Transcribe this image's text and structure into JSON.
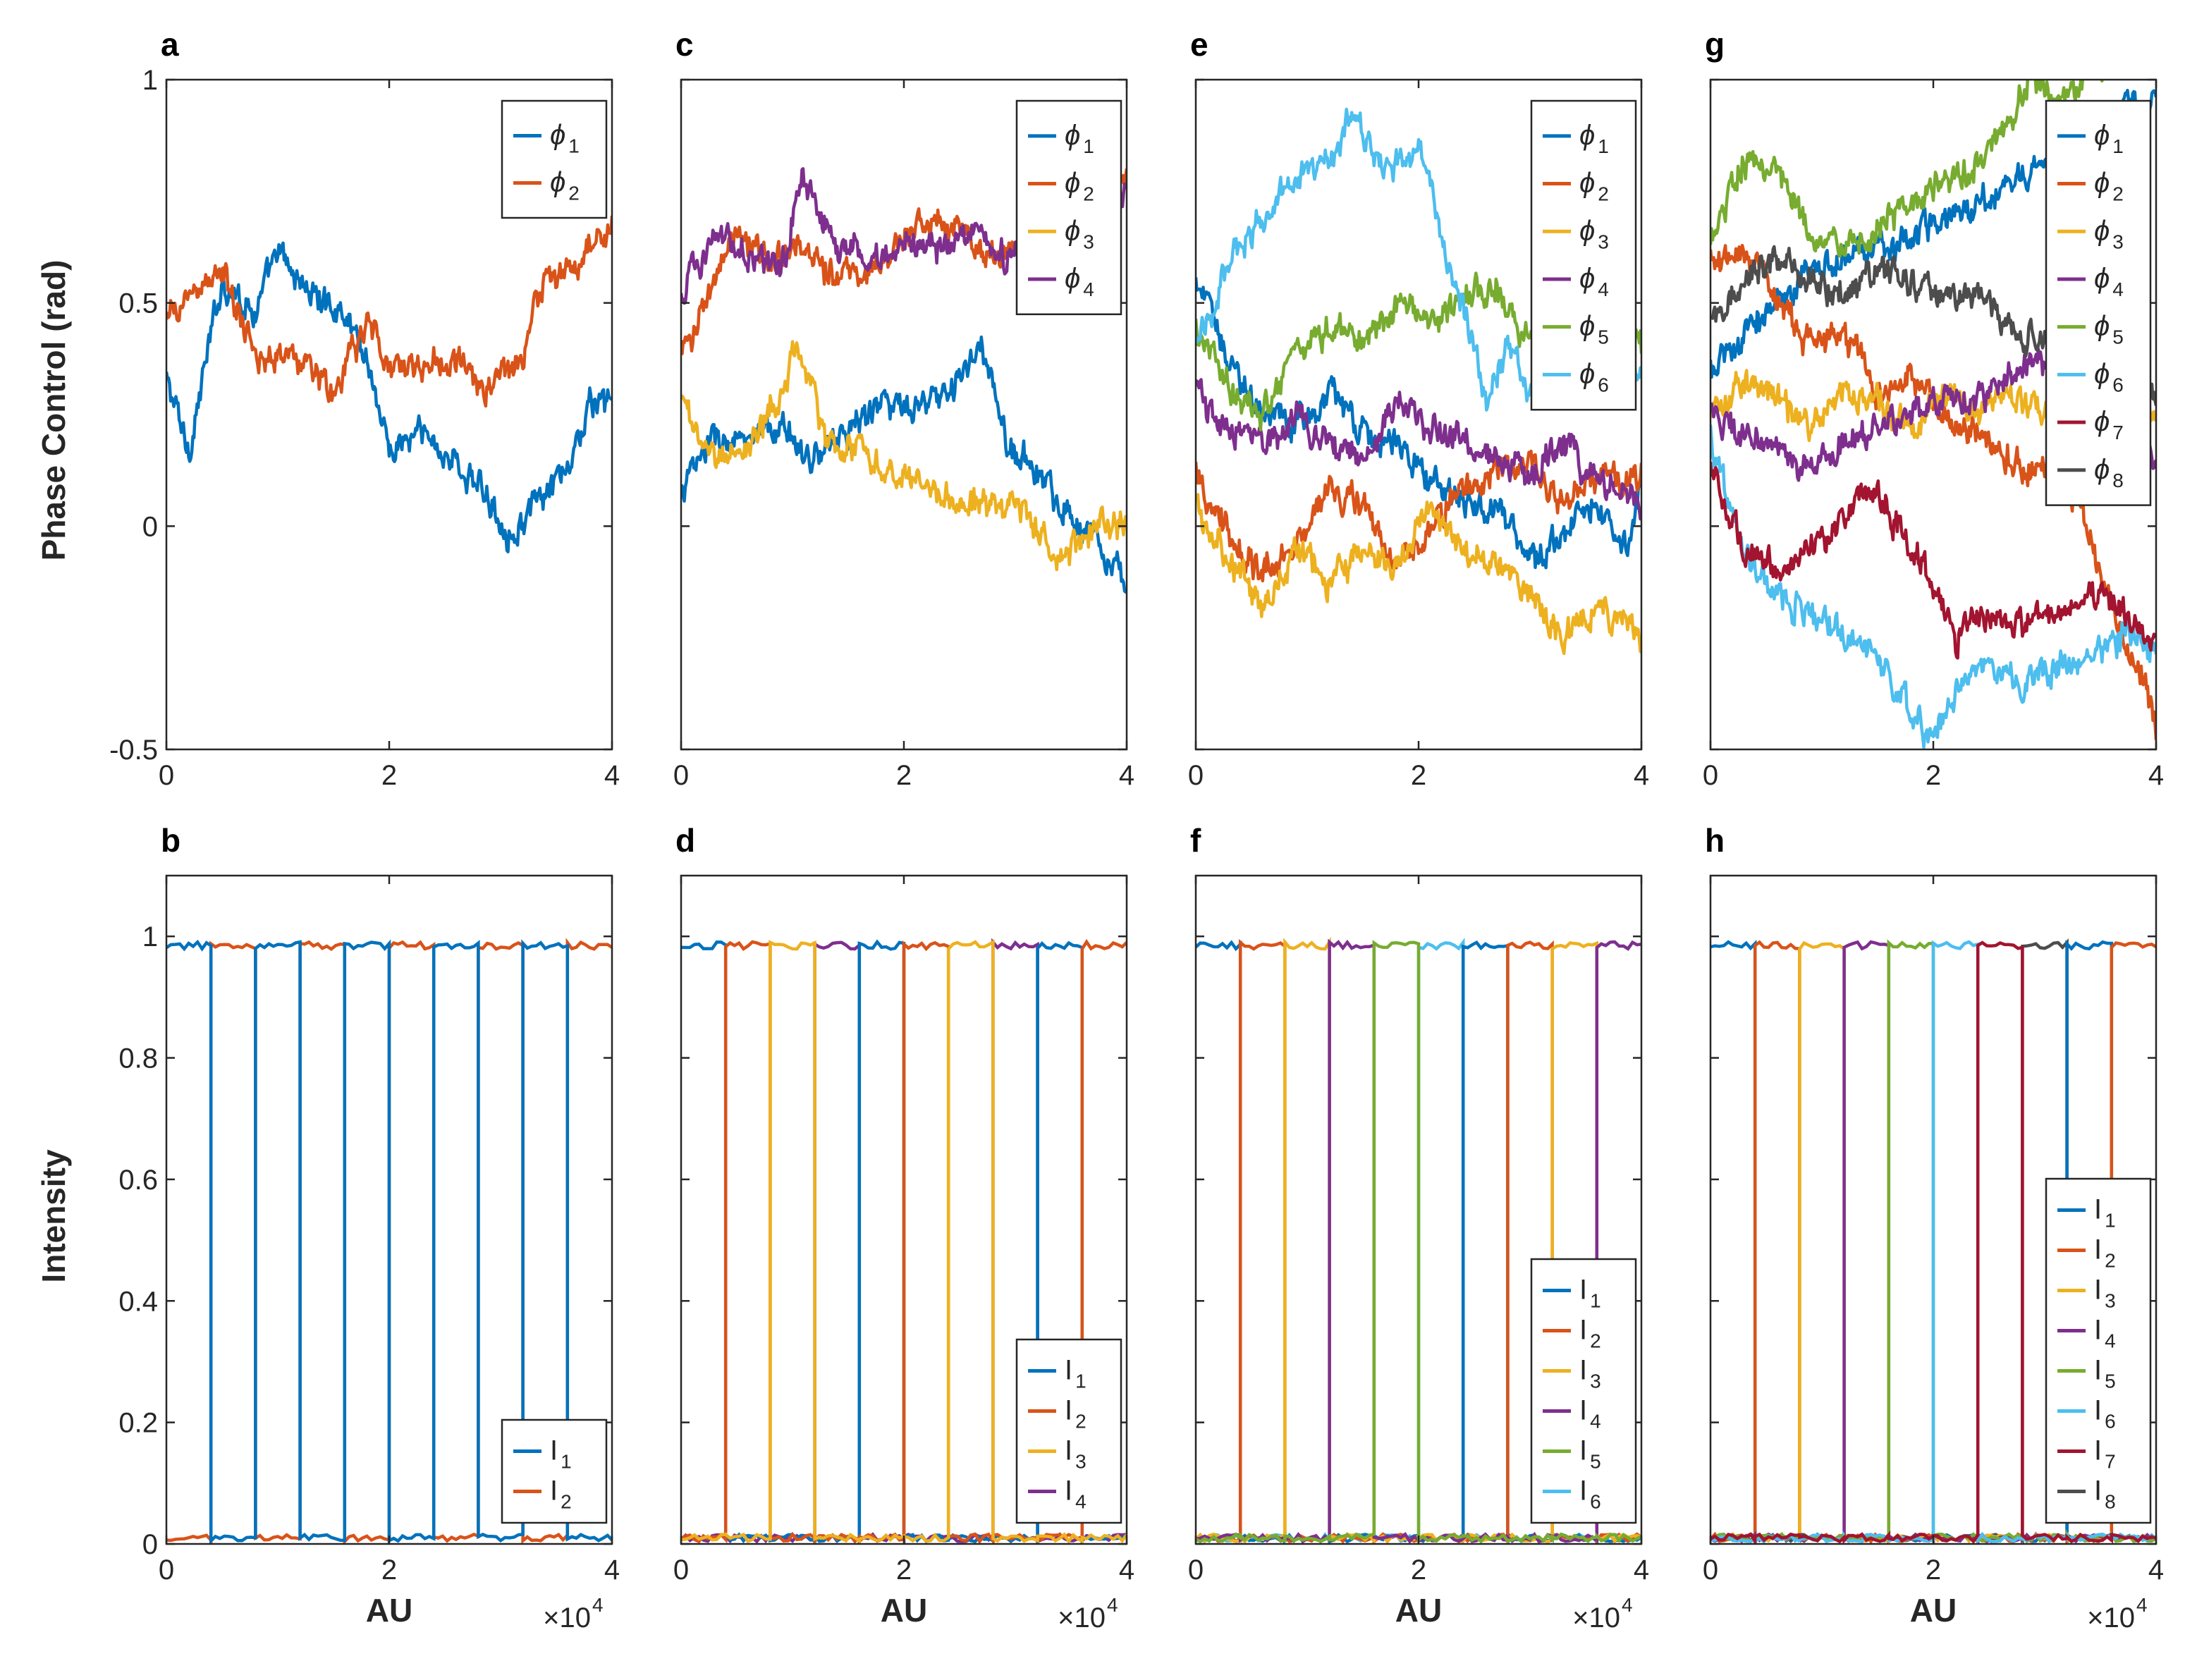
{
  "colors": {
    "c1": "#0072BD",
    "c2": "#D95319",
    "c3": "#EDB120",
    "c4": "#7E2F8E",
    "c5": "#77AC30",
    "c6": "#4DBEEE",
    "c7": "#A2142F",
    "c8": "#4D4D4D"
  },
  "shared": {
    "phase_ylabel": "Phase Control (rad)",
    "intensity_ylabel": "Intensity",
    "xlabel": "AU",
    "exponent_base": "×10",
    "exponent_power": "4"
  },
  "chart_data": [
    {
      "panel": "a",
      "type": "line",
      "row": "phase",
      "col": 0,
      "xlim": [
        0,
        4
      ],
      "ylim": [
        -0.5,
        1
      ],
      "xticks": [
        "0",
        "2",
        "4"
      ],
      "yticks": [
        "-0.5",
        "0",
        "0.5",
        "1"
      ],
      "legend": "top-right",
      "series": [
        {
          "name": "ϕ",
          "sub": "1",
          "color": "c1",
          "x": [
            0,
            0.2,
            0.5,
            0.8,
            1.0,
            1.3,
            1.6,
            1.8,
            2.0,
            2.3,
            2.6,
            2.9,
            3.1,
            3.3,
            3.6,
            3.8,
            4.0
          ],
          "y": [
            0.33,
            0.17,
            0.55,
            0.48,
            0.61,
            0.52,
            0.48,
            0.38,
            0.17,
            0.21,
            0.14,
            0.06,
            -0.02,
            0.04,
            0.12,
            0.27,
            0.28
          ]
        },
        {
          "name": "ϕ",
          "sub": "2",
          "color": "c2",
          "x": [
            0,
            0.2,
            0.5,
            0.8,
            1.0,
            1.3,
            1.5,
            1.7,
            1.8,
            2.0,
            2.3,
            2.6,
            2.8,
            3.0,
            3.2,
            3.3,
            3.6,
            3.8,
            4.0
          ],
          "y": [
            0.45,
            0.52,
            0.57,
            0.37,
            0.39,
            0.36,
            0.29,
            0.4,
            0.46,
            0.36,
            0.36,
            0.38,
            0.3,
            0.34,
            0.37,
            0.52,
            0.57,
            0.62,
            0.68
          ]
        }
      ]
    },
    {
      "panel": "b",
      "type": "line",
      "row": "intensity",
      "col": 0,
      "xlim": [
        0,
        4
      ],
      "ylim": [
        0,
        1.1
      ],
      "xticks": [
        "0",
        "2",
        "4"
      ],
      "yticks": [
        "0",
        "0.2",
        "0.4",
        "0.6",
        "0.8",
        "1"
      ],
      "legend": "bottom-right",
      "n_channels": 2,
      "segment_width": 0.4,
      "high": 0.985,
      "low": 0.01,
      "series": [
        {
          "name": "I",
          "sub": "1",
          "color": "c1"
        },
        {
          "name": "I",
          "sub": "2",
          "color": "c2"
        }
      ]
    },
    {
      "panel": "c",
      "type": "line",
      "row": "phase",
      "col": 1,
      "xlim": [
        0,
        4
      ],
      "ylim": [
        -0.5,
        1
      ],
      "xticks": [
        "0",
        "2",
        "4"
      ],
      "yticks": [
        "-0.5",
        "0",
        "0.5",
        "1"
      ],
      "legend": "top-right",
      "series": [
        {
          "name": "ϕ",
          "sub": "1",
          "color": "c1",
          "x": [
            0,
            0.3,
            0.6,
            0.9,
            1.2,
            1.5,
            1.8,
            2.1,
            2.4,
            2.7,
            2.9,
            3.1,
            3.4,
            3.7,
            4.0
          ],
          "y": [
            0.08,
            0.2,
            0.18,
            0.22,
            0.15,
            0.22,
            0.28,
            0.25,
            0.3,
            0.4,
            0.2,
            0.15,
            0.05,
            -0.02,
            -0.12
          ]
        },
        {
          "name": "ϕ",
          "sub": "2",
          "color": "c2",
          "x": [
            0,
            0.3,
            0.5,
            0.8,
            1.0,
            1.3,
            1.6,
            1.9,
            2.2,
            2.5,
            2.8,
            3.1,
            3.4,
            3.7,
            4.0
          ],
          "y": [
            0.38,
            0.55,
            0.65,
            0.6,
            0.62,
            0.58,
            0.55,
            0.62,
            0.7,
            0.68,
            0.6,
            0.62,
            0.65,
            0.74,
            0.77
          ]
        },
        {
          "name": "ϕ",
          "sub": "3",
          "color": "c3",
          "x": [
            0,
            0.3,
            0.6,
            0.9,
            1.05,
            1.3,
            1.6,
            1.9,
            2.2,
            2.5,
            2.8,
            3.1,
            3.4,
            3.7,
            4.0
          ],
          "y": [
            0.28,
            0.15,
            0.18,
            0.3,
            0.4,
            0.2,
            0.18,
            0.12,
            0.08,
            0.06,
            0.05,
            0.02,
            -0.08,
            0.0,
            0.0
          ]
        },
        {
          "name": "ϕ",
          "sub": "4",
          "color": "c4",
          "x": [
            0,
            0.3,
            0.6,
            0.9,
            1.1,
            1.4,
            1.7,
            2.0,
            2.3,
            2.6,
            2.9,
            3.2,
            3.5,
            3.8,
            4.0
          ],
          "y": [
            0.52,
            0.65,
            0.62,
            0.58,
            0.78,
            0.62,
            0.6,
            0.64,
            0.62,
            0.65,
            0.6,
            0.62,
            0.65,
            0.72,
            0.75
          ]
        }
      ]
    },
    {
      "panel": "d",
      "type": "line",
      "row": "intensity",
      "col": 1,
      "xlim": [
        0,
        4
      ],
      "ylim": [
        0,
        1.1
      ],
      "xticks": [
        "0",
        "2",
        "4"
      ],
      "yticks": [
        "0",
        "0.2",
        "0.4",
        "0.6",
        "0.8",
        "1"
      ],
      "legend": "bottom-right",
      "n_channels": 4,
      "segment_width": 0.4,
      "high": 0.985,
      "low": 0.01,
      "series": [
        {
          "name": "I",
          "sub": "1",
          "color": "c1"
        },
        {
          "name": "I",
          "sub": "2",
          "color": "c2"
        },
        {
          "name": "I",
          "sub": "3",
          "color": "c3"
        },
        {
          "name": "I",
          "sub": "4",
          "color": "c4"
        }
      ]
    },
    {
      "panel": "e",
      "type": "line",
      "row": "phase",
      "col": 2,
      "xlim": [
        0,
        4
      ],
      "ylim": [
        -0.5,
        1
      ],
      "xticks": [
        "0",
        "2",
        "4"
      ],
      "yticks": [
        "-0.5",
        "0",
        "0.5",
        "1"
      ],
      "legend": "top-right",
      "series": [
        {
          "name": "ϕ",
          "sub": "1",
          "color": "c1",
          "x": [
            0,
            0.3,
            0.6,
            0.9,
            1.2,
            1.5,
            1.8,
            2.1,
            2.4,
            2.7,
            3.0,
            3.3,
            3.6,
            3.9,
            4.0
          ],
          "y": [
            0.55,
            0.38,
            0.25,
            0.22,
            0.3,
            0.2,
            0.2,
            0.1,
            0.05,
            0.05,
            -0.08,
            -0.02,
            0.05,
            -0.05,
            0.1
          ]
        },
        {
          "name": "ϕ",
          "sub": "2",
          "color": "c2",
          "x": [
            0,
            0.3,
            0.6,
            0.9,
            1.2,
            1.5,
            1.8,
            2.1,
            2.4,
            2.7,
            3.0,
            3.3,
            3.6,
            3.9,
            4.0
          ],
          "y": [
            0.12,
            -0.02,
            -0.1,
            -0.05,
            0.08,
            0.05,
            -0.1,
            0.0,
            0.08,
            0.12,
            0.15,
            0.05,
            0.12,
            0.1,
            0.12
          ]
        },
        {
          "name": "ϕ",
          "sub": "3",
          "color": "c3",
          "x": [
            0,
            0.3,
            0.6,
            0.9,
            1.2,
            1.5,
            1.8,
            2.1,
            2.4,
            2.7,
            3.0,
            3.3,
            3.6,
            3.9,
            4.0
          ],
          "y": [
            0.05,
            -0.08,
            -0.18,
            -0.05,
            -0.12,
            -0.05,
            -0.1,
            0.05,
            -0.05,
            -0.08,
            -0.15,
            -0.25,
            -0.18,
            -0.22,
            -0.28
          ]
        },
        {
          "name": "ϕ",
          "sub": "4",
          "color": "c4",
          "x": [
            0,
            0.3,
            0.6,
            0.9,
            1.2,
            1.5,
            1.8,
            2.1,
            2.4,
            2.7,
            3.0,
            3.3,
            3.6,
            3.9,
            4.0
          ],
          "y": [
            0.3,
            0.22,
            0.18,
            0.25,
            0.18,
            0.15,
            0.28,
            0.22,
            0.2,
            0.15,
            0.12,
            0.18,
            0.1,
            0.08,
            0.02
          ]
        },
        {
          "name": "ϕ",
          "sub": "5",
          "color": "c5",
          "x": [
            0,
            0.3,
            0.6,
            0.9,
            1.2,
            1.5,
            1.8,
            2.1,
            2.4,
            2.7,
            2.9,
            3.1,
            3.4,
            3.7,
            4.0
          ],
          "y": [
            0.45,
            0.3,
            0.25,
            0.38,
            0.45,
            0.4,
            0.5,
            0.45,
            0.52,
            0.55,
            0.4,
            0.5,
            0.55,
            0.58,
            0.4
          ]
        },
        {
          "name": "ϕ",
          "sub": "6",
          "color": "c6",
          "x": [
            0,
            0.3,
            0.6,
            0.9,
            1.2,
            1.4,
            1.7,
            2.0,
            2.2,
            2.4,
            2.6,
            2.8,
            3.0,
            3.3,
            3.6,
            4.0
          ],
          "y": [
            0.4,
            0.58,
            0.7,
            0.78,
            0.82,
            0.92,
            0.8,
            0.85,
            0.65,
            0.5,
            0.28,
            0.4,
            0.3,
            0.42,
            0.45,
            0.35
          ]
        }
      ]
    },
    {
      "panel": "f",
      "type": "line",
      "row": "intensity",
      "col": 2,
      "xlim": [
        0,
        4
      ],
      "ylim": [
        0,
        1.1
      ],
      "xticks": [
        "0",
        "2",
        "4"
      ],
      "yticks": [
        "0",
        "0.2",
        "0.4",
        "0.6",
        "0.8",
        "1"
      ],
      "legend": "bottom-right",
      "n_channels": 6,
      "segment_width": 0.4,
      "high": 0.985,
      "low": 0.01,
      "series": [
        {
          "name": "I",
          "sub": "1",
          "color": "c1"
        },
        {
          "name": "I",
          "sub": "2",
          "color": "c2"
        },
        {
          "name": "I",
          "sub": "3",
          "color": "c3"
        },
        {
          "name": "I",
          "sub": "4",
          "color": "c4"
        },
        {
          "name": "I",
          "sub": "5",
          "color": "c5"
        },
        {
          "name": "I",
          "sub": "6",
          "color": "c6"
        }
      ]
    },
    {
      "panel": "g",
      "type": "line",
      "row": "phase",
      "col": 3,
      "xlim": [
        0,
        4
      ],
      "ylim": [
        -0.5,
        1
      ],
      "xticks": [
        "0",
        "2",
        "4"
      ],
      "yticks": [
        "-0.5",
        "0",
        "0.5",
        "1"
      ],
      "legend": "top-right",
      "series": [
        {
          "name": "ϕ",
          "sub": "1",
          "color": "c1",
          "x": [
            0,
            0.3,
            0.6,
            0.9,
            1.2,
            1.5,
            1.8,
            2.1,
            2.4,
            2.7,
            3.0,
            3.3,
            3.6,
            3.9,
            4.0
          ],
          "y": [
            0.35,
            0.42,
            0.5,
            0.58,
            0.6,
            0.62,
            0.65,
            0.68,
            0.72,
            0.78,
            0.82,
            0.88,
            0.92,
            0.95,
            0.95
          ]
        },
        {
          "name": "ϕ",
          "sub": "2",
          "color": "c2",
          "x": [
            0,
            0.3,
            0.6,
            0.9,
            1.2,
            1.5,
            1.8,
            2.1,
            2.4,
            2.7,
            3.0,
            3.3,
            3.5,
            3.7,
            3.9,
            4.0
          ],
          "y": [
            0.6,
            0.62,
            0.52,
            0.4,
            0.42,
            0.3,
            0.35,
            0.25,
            0.22,
            0.15,
            0.12,
            0.05,
            -0.1,
            -0.25,
            -0.35,
            -0.45
          ]
        },
        {
          "name": "ϕ",
          "sub": "3",
          "color": "c3",
          "x": [
            0,
            0.3,
            0.6,
            0.9,
            1.2,
            1.5,
            1.8,
            2.1,
            2.4,
            2.7,
            3.0,
            3.3,
            3.6,
            3.9,
            4.0
          ],
          "y": [
            0.25,
            0.32,
            0.28,
            0.22,
            0.3,
            0.28,
            0.22,
            0.3,
            0.25,
            0.3,
            0.25,
            0.2,
            0.28,
            0.25,
            0.25
          ]
        },
        {
          "name": "ϕ",
          "sub": "4",
          "color": "c4",
          "x": [
            0,
            0.3,
            0.6,
            0.9,
            1.2,
            1.5,
            1.8,
            2.1,
            2.4,
            2.7,
            3.0,
            3.3,
            3.6,
            3.9,
            4.0
          ],
          "y": [
            0.25,
            0.2,
            0.18,
            0.12,
            0.2,
            0.22,
            0.25,
            0.3,
            0.28,
            0.35,
            0.38,
            0.3,
            0.35,
            0.2,
            0.12
          ]
        },
        {
          "name": "ϕ",
          "sub": "5",
          "color": "c5",
          "x": [
            0,
            0.3,
            0.6,
            0.9,
            1.2,
            1.5,
            1.8,
            2.1,
            2.4,
            2.7,
            2.9,
            3.1,
            3.4,
            3.7,
            4.0
          ],
          "y": [
            0.62,
            0.82,
            0.8,
            0.65,
            0.62,
            0.68,
            0.72,
            0.78,
            0.8,
            0.92,
            1.02,
            0.95,
            1.0,
            1.05,
            1.05
          ]
        },
        {
          "name": "ϕ",
          "sub": "6",
          "color": "c6",
          "x": [
            0,
            0.3,
            0.6,
            0.9,
            1.2,
            1.5,
            1.8,
            2.0,
            2.2,
            2.5,
            2.8,
            3.1,
            3.4,
            3.7,
            4.0
          ],
          "y": [
            0.2,
            -0.05,
            -0.15,
            -0.2,
            -0.25,
            -0.3,
            -0.42,
            -0.48,
            -0.38,
            -0.3,
            -0.35,
            -0.32,
            -0.3,
            -0.25,
            -0.28
          ]
        },
        {
          "name": "ϕ",
          "sub": "7",
          "color": "c7",
          "x": [
            0,
            0.3,
            0.6,
            0.9,
            1.2,
            1.5,
            1.8,
            2.0,
            2.2,
            2.5,
            2.8,
            3.1,
            3.4,
            3.7,
            4.0
          ],
          "y": [
            0.12,
            -0.05,
            -0.1,
            -0.05,
            0.02,
            0.08,
            -0.05,
            -0.12,
            -0.25,
            -0.18,
            -0.22,
            -0.2,
            -0.15,
            -0.18,
            -0.25
          ]
        },
        {
          "name": "ϕ",
          "sub": "8",
          "color": "c8",
          "x": [
            0,
            0.3,
            0.6,
            0.9,
            1.2,
            1.5,
            1.8,
            2.1,
            2.4,
            2.7,
            3.0,
            3.3,
            3.6,
            3.9,
            4.0
          ],
          "y": [
            0.45,
            0.55,
            0.6,
            0.55,
            0.52,
            0.58,
            0.55,
            0.5,
            0.52,
            0.45,
            0.4,
            0.38,
            0.35,
            0.32,
            0.3
          ]
        }
      ]
    },
    {
      "panel": "h",
      "type": "line",
      "row": "intensity",
      "col": 3,
      "xlim": [
        0,
        4
      ],
      "ylim": [
        0,
        1.1
      ],
      "xticks": [
        "0",
        "2",
        "4"
      ],
      "yticks": [
        "0",
        "0.2",
        "0.4",
        "0.6",
        "0.8",
        "1"
      ],
      "legend": "bottom-right",
      "n_channels": 8,
      "segment_width": 0.4,
      "high": 0.985,
      "low": 0.01,
      "series": [
        {
          "name": "I",
          "sub": "1",
          "color": "c1"
        },
        {
          "name": "I",
          "sub": "2",
          "color": "c2"
        },
        {
          "name": "I",
          "sub": "3",
          "color": "c3"
        },
        {
          "name": "I",
          "sub": "4",
          "color": "c4"
        },
        {
          "name": "I",
          "sub": "5",
          "color": "c5"
        },
        {
          "name": "I",
          "sub": "6",
          "color": "c6"
        },
        {
          "name": "I",
          "sub": "7",
          "color": "c7"
        },
        {
          "name": "I",
          "sub": "8",
          "color": "c8"
        }
      ]
    }
  ]
}
